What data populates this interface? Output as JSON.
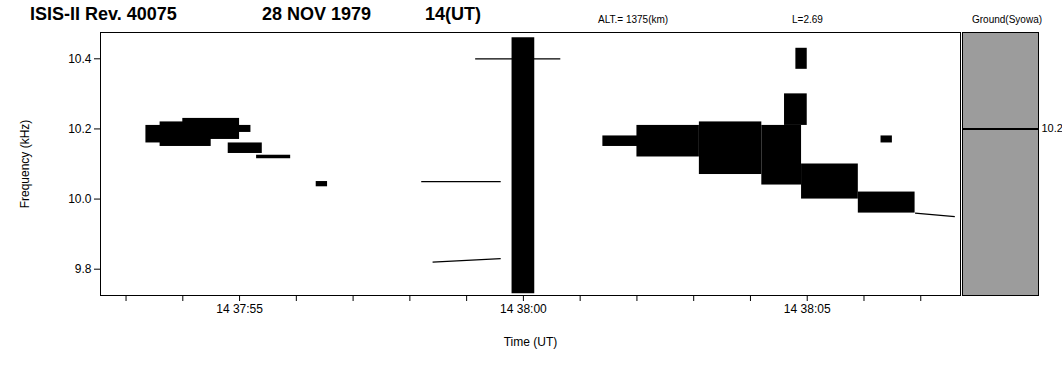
{
  "chart_data": {
    "type": "spectrogram",
    "title": "ISIS-II Rev. 40075",
    "annotations": [
      "28 NOV 1979",
      "14(UT)",
      "ALT.= 1375(km)",
      "L=2.69"
    ],
    "x_label": "Time (UT)",
    "y_label": "Frequency (kHz)",
    "color": "#000000",
    "xlim": [
      52672.55,
      52687.7
    ],
    "xticks": [
      {
        "value": 52673,
        "label": null
      },
      {
        "value": 52674,
        "label": null
      },
      {
        "value": 52675,
        "label": "14 37:55"
      },
      {
        "value": 52676,
        "label": null
      },
      {
        "value": 52677,
        "label": null
      },
      {
        "value": 52678,
        "label": null
      },
      {
        "value": 52679,
        "label": null
      },
      {
        "value": 52680,
        "label": "14 38:00"
      },
      {
        "value": 52681,
        "label": null
      },
      {
        "value": 52682,
        "label": null
      },
      {
        "value": 52683,
        "label": null
      },
      {
        "value": 52684,
        "label": null
      },
      {
        "value": 52685,
        "label": "14 38:05"
      },
      {
        "value": 52686,
        "label": null
      },
      {
        "value": 52687,
        "label": null
      }
    ],
    "ylim": [
      9.725,
      10.475
    ],
    "yticks": [
      9.8,
      {
        "value": 10,
        "label": "10.0"
      },
      10.2,
      10.4
    ],
    "cells": [
      [
        52673.35,
        52674.0,
        10.16,
        10.21
      ],
      [
        52673.6,
        52674.5,
        10.15,
        10.22
      ],
      [
        52674.0,
        52675.0,
        10.17,
        10.23
      ],
      [
        52674.5,
        52675.2,
        10.19,
        10.21
      ],
      [
        52674.8,
        52675.4,
        10.13,
        10.16
      ],
      [
        52675.3,
        52675.9,
        10.115,
        10.125
      ],
      [
        52676.35,
        52676.55,
        10.035,
        10.05
      ],
      [
        52679.8,
        52680.2,
        9.73,
        10.46
      ],
      [
        52681.4,
        52682.2,
        10.15,
        10.18
      ],
      [
        52682.0,
        52683.1,
        10.12,
        10.21
      ],
      [
        52683.1,
        52684.2,
        10.07,
        10.22
      ],
      [
        52684.2,
        52684.9,
        10.04,
        10.21
      ],
      [
        52684.6,
        52685.0,
        10.21,
        10.3
      ],
      [
        52684.8,
        52685.0,
        10.37,
        10.43
      ],
      [
        52684.9,
        52685.9,
        10.0,
        10.1
      ],
      [
        52685.9,
        52686.9,
        9.96,
        10.02
      ],
      [
        52686.3,
        52686.5,
        10.16,
        10.18
      ]
    ],
    "traces": [
      [
        52678.2,
        52679.6,
        10.05,
        10.05
      ],
      [
        52678.4,
        52679.6,
        9.82,
        9.83
      ],
      [
        52679.15,
        52680.65,
        10.4,
        10.4
      ],
      [
        52686.9,
        52687.6,
        9.96,
        9.95
      ]
    ],
    "ground": {
      "title": "Ground(Syowa)",
      "yticks": [
        10.2
      ],
      "trace": 10.2
    }
  }
}
